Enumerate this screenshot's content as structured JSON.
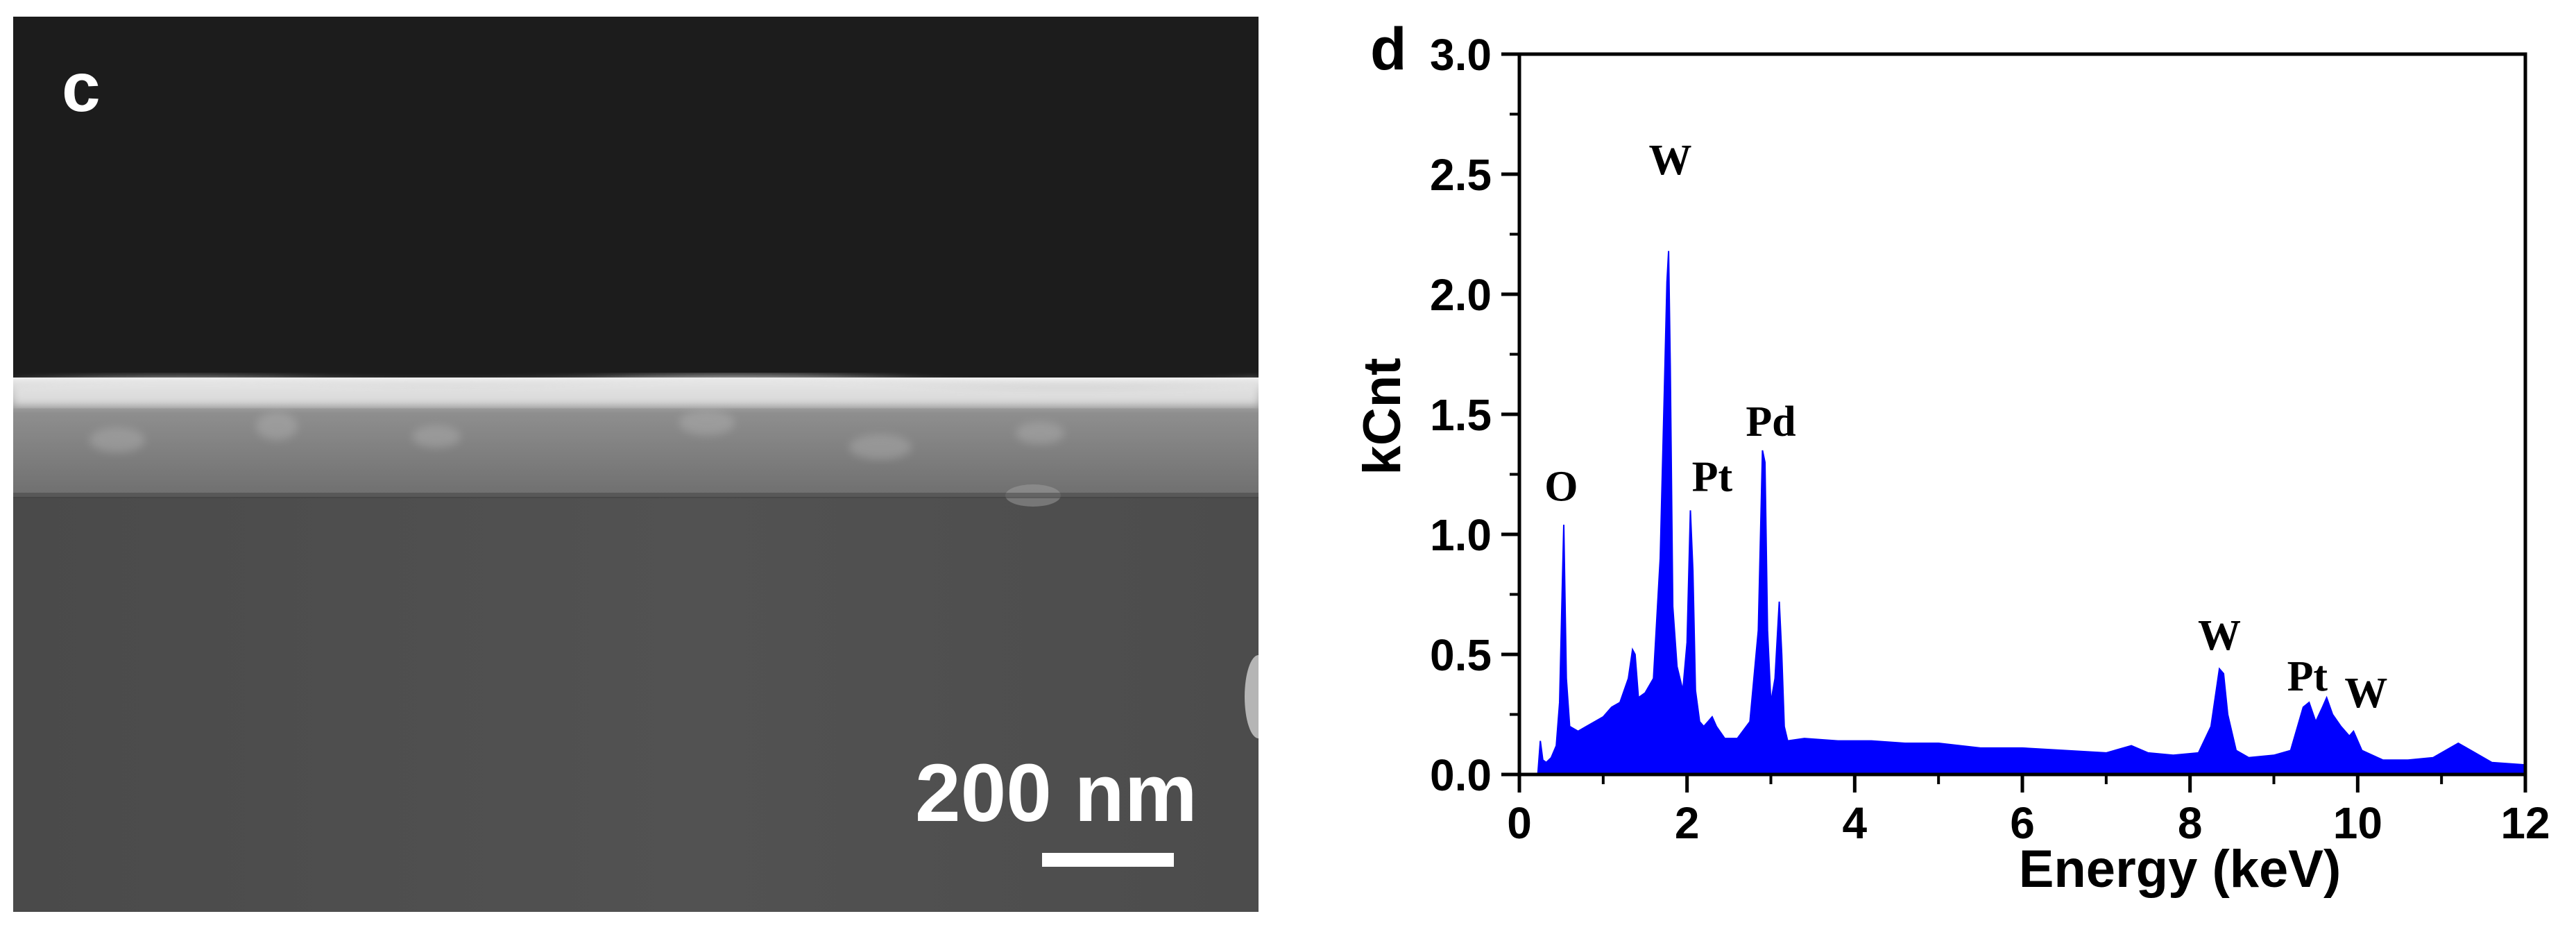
{
  "sem": {
    "panel_label": "c",
    "scale_text": "200 nm"
  },
  "chart_data": {
    "type": "area",
    "panel_label": "d",
    "title": "",
    "xlabel": "Energy (keV)",
    "ylabel": "kCnt",
    "xlim": [
      0,
      12
    ],
    "ylim": [
      0,
      3.0
    ],
    "xticks": [
      0,
      2,
      4,
      6,
      8,
      10,
      12
    ],
    "yticks": [
      "0.0",
      "0.5",
      "1.0",
      "1.5",
      "2.0",
      "2.5",
      "3.0"
    ],
    "color": "#0000ff",
    "series": [
      {
        "name": "EDS spectrum",
        "x": [
          0.22,
          0.25,
          0.28,
          0.32,
          0.38,
          0.44,
          0.48,
          0.51,
          0.53,
          0.56,
          0.6,
          0.7,
          0.8,
          0.9,
          1.0,
          1.1,
          1.2,
          1.3,
          1.35,
          1.38,
          1.42,
          1.5,
          1.6,
          1.68,
          1.73,
          1.76,
          1.78,
          1.8,
          1.83,
          1.88,
          1.95,
          2.0,
          2.04,
          2.07,
          2.1,
          2.15,
          2.2,
          2.25,
          2.3,
          2.35,
          2.45,
          2.6,
          2.75,
          2.85,
          2.9,
          2.93,
          2.96,
          3.0,
          3.05,
          3.1,
          3.13,
          3.16,
          3.2,
          3.4,
          3.8,
          4.2,
          4.6,
          5.0,
          5.5,
          6.0,
          6.5,
          7.0,
          7.3,
          7.5,
          7.8,
          8.1,
          8.25,
          8.35,
          8.4,
          8.45,
          8.55,
          8.7,
          9.0,
          9.2,
          9.35,
          9.42,
          9.5,
          9.58,
          9.63,
          9.7,
          9.8,
          9.9,
          9.95,
          10.05,
          10.3,
          10.6,
          10.9,
          11.1,
          11.2,
          11.35,
          11.6,
          12.0
        ],
        "y": [
          0.0,
          0.14,
          0.06,
          0.05,
          0.07,
          0.12,
          0.3,
          0.75,
          1.04,
          0.4,
          0.2,
          0.18,
          0.2,
          0.22,
          0.24,
          0.28,
          0.3,
          0.4,
          0.52,
          0.5,
          0.32,
          0.34,
          0.4,
          0.9,
          1.6,
          2.05,
          2.18,
          1.7,
          0.7,
          0.45,
          0.35,
          0.55,
          1.1,
          0.85,
          0.35,
          0.22,
          0.2,
          0.22,
          0.24,
          0.2,
          0.15,
          0.15,
          0.22,
          0.6,
          1.35,
          1.3,
          0.6,
          0.3,
          0.4,
          0.72,
          0.5,
          0.2,
          0.14,
          0.15,
          0.14,
          0.14,
          0.13,
          0.13,
          0.11,
          0.11,
          0.1,
          0.09,
          0.12,
          0.09,
          0.08,
          0.09,
          0.2,
          0.44,
          0.42,
          0.25,
          0.1,
          0.07,
          0.08,
          0.1,
          0.28,
          0.3,
          0.22,
          0.28,
          0.32,
          0.25,
          0.2,
          0.16,
          0.18,
          0.1,
          0.06,
          0.06,
          0.07,
          0.11,
          0.13,
          0.1,
          0.05,
          0.04
        ]
      }
    ],
    "peak_labels": [
      {
        "text": "O",
        "x": 0.5,
        "y": 1.14
      },
      {
        "text": "W",
        "x": 1.8,
        "y": 2.5
      },
      {
        "text": "Pt",
        "x": 2.3,
        "y": 1.18
      },
      {
        "text": "Pd",
        "x": 3.0,
        "y": 1.41
      },
      {
        "text": "W",
        "x": 8.35,
        "y": 0.52
      },
      {
        "text": "Pt",
        "x": 9.4,
        "y": 0.35
      },
      {
        "text": "W",
        "x": 10.1,
        "y": 0.28
      }
    ]
  }
}
